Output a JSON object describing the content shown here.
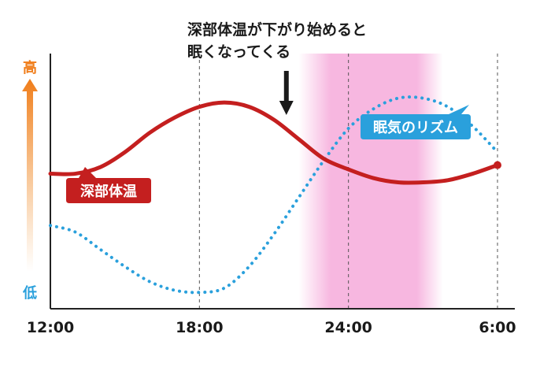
{
  "chart_data": {
    "type": "line",
    "title": "",
    "annotation": [
      "深部体温が下がり始めると",
      "眠くなってくる"
    ],
    "y_axis": {
      "high_label": "高",
      "low_label": "低"
    },
    "x_ticks": [
      "12:00",
      "18:00",
      "24:00",
      "6:00"
    ],
    "x_tick_hours": [
      12,
      18,
      24,
      30
    ],
    "xlim": [
      12,
      30
    ],
    "ylim": [
      0,
      100
    ],
    "sleep_band": {
      "start": 22,
      "end": 27.8
    },
    "annotation_arrow_x": 21.5,
    "series": [
      {
        "name": "深部体温",
        "color": "#c41f1f",
        "style": "solid",
        "x": [
          12,
          13,
          14,
          15,
          16,
          17,
          18,
          19,
          20,
          21,
          22,
          23,
          24,
          25,
          26,
          27,
          28,
          29,
          30
        ],
        "y": [
          56,
          56,
          59,
          66,
          75,
          82,
          87,
          89,
          87,
          81,
          72,
          63,
          58,
          54,
          52,
          52,
          53,
          56,
          60
        ]
      },
      {
        "name": "眠気のリズム",
        "color": "#2aa0dc",
        "style": "dotted",
        "x": [
          12,
          13,
          14,
          15,
          16,
          17,
          18,
          19,
          20,
          21,
          22,
          23,
          24,
          25,
          26,
          27,
          28,
          29,
          30
        ],
        "y": [
          32,
          29,
          21,
          13,
          6,
          2,
          1,
          3,
          13,
          28,
          45,
          62,
          77,
          86,
          91,
          91,
          87,
          78,
          66
        ]
      }
    ]
  }
}
